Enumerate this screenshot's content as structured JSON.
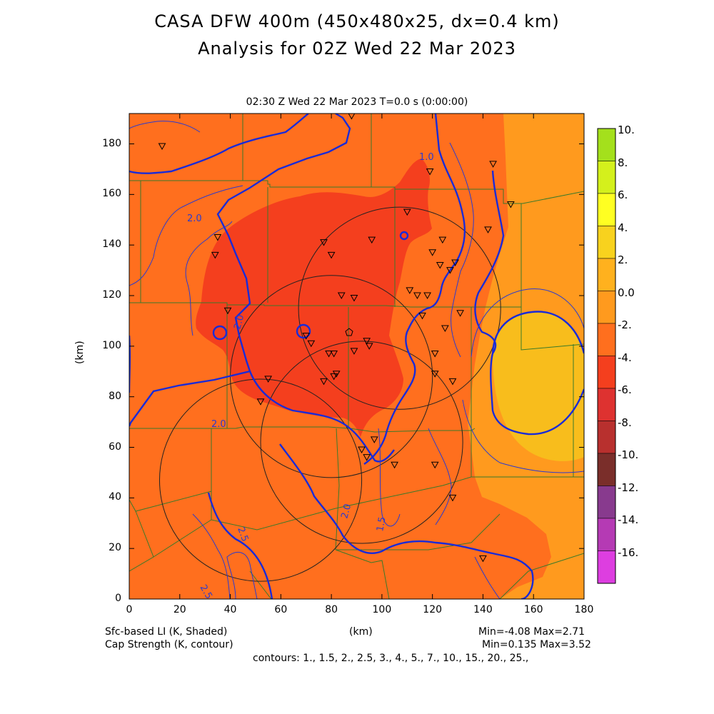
{
  "header": {
    "title_line1": "CASA DFW 400m (450x480x25, dx=0.4 km)",
    "title_line2": "Analysis for 02Z Wed 22 Mar 2023",
    "subtitle": "02:30 Z Wed 22 Mar 2023    T=0.0 s (0:00:00)"
  },
  "axes": {
    "x_ticks": [
      "0",
      "20",
      "40",
      "60",
      "80",
      "100",
      "120",
      "140",
      "160",
      "180"
    ],
    "y_ticks": [
      "0",
      "20",
      "40",
      "60",
      "80",
      "100",
      "120",
      "140",
      "160",
      "180"
    ],
    "x_label": "(km)",
    "y_label": "(km)",
    "x_range": [
      0,
      180
    ],
    "y_range": [
      0,
      192
    ]
  },
  "colorbar": {
    "labels": [
      "10.",
      "8.",
      "6.",
      "4.",
      "2.",
      "0.0",
      "-2.",
      "-4.",
      "-6.",
      "-8.",
      "-10.",
      "-12.",
      "-14.",
      "-16."
    ],
    "colors": [
      "#a4e01c",
      "#d4f01c",
      "#ffff22",
      "#f8d21e",
      "#ffb11e",
      "#ff9a1e",
      "#ff6f1e",
      "#f43f1e",
      "#de3230",
      "#b8302e",
      "#7a2e2a",
      "#883a8e",
      "#b53ab4",
      "#dd3ee0"
    ]
  },
  "footer": {
    "shaded_label": "Sfc-based LI (K, Shaded)",
    "contour_label": "Cap Strength (K, contour)",
    "shaded_minmax": "Min=-4.08 Max=2.71",
    "contour_minmax": "Min=0.135 Max=3.52",
    "contours": "contours: 1., 1.5, 2., 2.5, 3., 4., 5., 7., 10., 15., 20., 25.,",
    "x_unit": "(km)"
  },
  "contour_labels": [
    "1.0",
    "2.0",
    "2.0",
    "2.0",
    "2.0",
    "2.5",
    "2.5",
    "1.5"
  ],
  "radar_rings": [
    {
      "cx_km": 107,
      "cy_km": 115,
      "r_km": 40
    },
    {
      "cx_km": 80,
      "cy_km": 88,
      "r_km": 40
    },
    {
      "cx_km": 92,
      "cy_km": 62,
      "r_km": 40
    },
    {
      "cx_km": 52,
      "cy_km": 47,
      "r_km": 40
    }
  ],
  "stations": [
    [
      13,
      179
    ],
    [
      35,
      143
    ],
    [
      34,
      136
    ],
    [
      39,
      114
    ],
    [
      77,
      141
    ],
    [
      80,
      136
    ],
    [
      96,
      142
    ],
    [
      110,
      153
    ],
    [
      119,
      169
    ],
    [
      120,
      137
    ],
    [
      124,
      142
    ],
    [
      123,
      132
    ],
    [
      127,
      130
    ],
    [
      129,
      133
    ],
    [
      142,
      146
    ],
    [
      144,
      172
    ],
    [
      151,
      156
    ],
    [
      84,
      120
    ],
    [
      89,
      119
    ],
    [
      111,
      122
    ],
    [
      114,
      120
    ],
    [
      118,
      120
    ],
    [
      116,
      112
    ],
    [
      125,
      107
    ],
    [
      131,
      113
    ],
    [
      79,
      97
    ],
    [
      81,
      97
    ],
    [
      89,
      98
    ],
    [
      94,
      102
    ],
    [
      95,
      100
    ],
    [
      70,
      104
    ],
    [
      72,
      101
    ],
    [
      81,
      88
    ],
    [
      82,
      89
    ],
    [
      77,
      86
    ],
    [
      55,
      87
    ],
    [
      52,
      78
    ],
    [
      121,
      97
    ],
    [
      121,
      89
    ],
    [
      128,
      86
    ],
    [
      97,
      63
    ],
    [
      92,
      59
    ],
    [
      94,
      56
    ],
    [
      105,
      53
    ],
    [
      121,
      53
    ],
    [
      128,
      40
    ],
    [
      140,
      16
    ],
    [
      88,
      191
    ]
  ]
}
